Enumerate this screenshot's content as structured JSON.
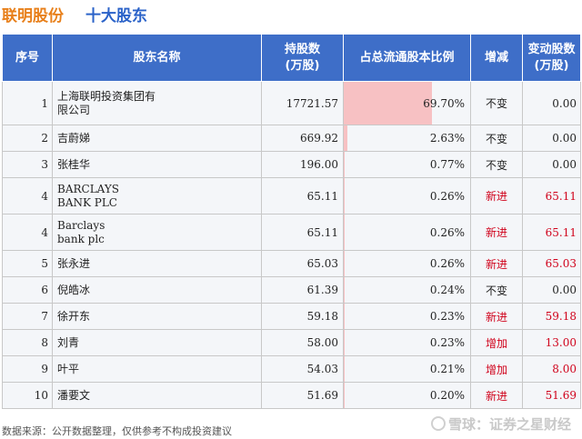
{
  "title": {
    "company": "联明股份",
    "main": "十大股东"
  },
  "table": {
    "headers": {
      "index": "序号",
      "name": "股东名称",
      "shares": "持股数\n(万股)",
      "ratio": "占总流通股本比例",
      "change": "增减",
      "delta": "变动股数\n(万股)"
    },
    "rows": [
      {
        "index": "1",
        "name": "上海联明投资集团有\n限公司",
        "shares": "17721.57",
        "ratio": "69.70%",
        "ratio_value": 69.7,
        "change": "不变",
        "delta": "0.00"
      },
      {
        "index": "2",
        "name": "吉蔚娣",
        "shares": "669.92",
        "ratio": "2.63%",
        "ratio_value": 2.63,
        "change": "不变",
        "delta": "0.00"
      },
      {
        "index": "3",
        "name": "张桂华",
        "shares": "196.00",
        "ratio": "0.77%",
        "ratio_value": 0.77,
        "change": "不变",
        "delta": "0.00"
      },
      {
        "index": "4",
        "name": "BARCLAYS\nBANK PLC",
        "shares": "65.11",
        "ratio": "0.26%",
        "ratio_value": 0.26,
        "change": "新进",
        "delta": "65.11"
      },
      {
        "index": "4",
        "name": "Barclays\nbank plc",
        "shares": "65.11",
        "ratio": "0.26%",
        "ratio_value": 0.26,
        "change": "新进",
        "delta": "65.11"
      },
      {
        "index": "5",
        "name": "张永进",
        "shares": "65.03",
        "ratio": "0.26%",
        "ratio_value": 0.26,
        "change": "新进",
        "delta": "65.03"
      },
      {
        "index": "6",
        "name": "倪皓冰",
        "shares": "61.39",
        "ratio": "0.24%",
        "ratio_value": 0.24,
        "change": "不变",
        "delta": "0.00"
      },
      {
        "index": "7",
        "name": "徐开东",
        "shares": "59.18",
        "ratio": "0.23%",
        "ratio_value": 0.23,
        "change": "新进",
        "delta": "59.18"
      },
      {
        "index": "8",
        "name": "刘青",
        "shares": "58.00",
        "ratio": "0.23%",
        "ratio_value": 0.23,
        "change": "增加",
        "delta": "13.00"
      },
      {
        "index": "9",
        "name": "叶平",
        "shares": "54.03",
        "ratio": "0.21%",
        "ratio_value": 0.21,
        "change": "增加",
        "delta": "8.00"
      },
      {
        "index": "10",
        "name": "潘要文",
        "shares": "51.69",
        "ratio": "0.20%",
        "ratio_value": 0.2,
        "change": "新进",
        "delta": "51.69"
      }
    ]
  },
  "footer": {
    "source": "数据来源：公开数据整理，仅供参考不构成投资建议"
  },
  "brand": {
    "text": "雪球：证券之星财经"
  },
  "watermark": {
    "text": "证券之星"
  },
  "colors": {
    "header_bg": "#3e6ec8",
    "company_title": "#e8801b",
    "main_title": "#2b63c9",
    "bar": "#f7c1c3",
    "increase_text": "#d0021b"
  }
}
